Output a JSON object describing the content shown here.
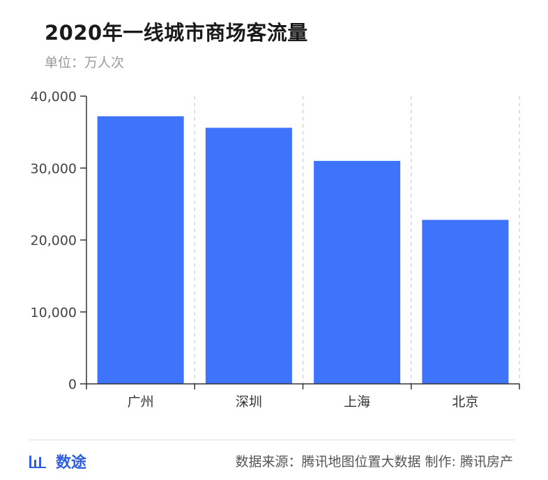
{
  "header": {
    "title": "2020年一线城市商场客流量",
    "unit": "单位：万人次"
  },
  "footer": {
    "brand": "数途",
    "source": "数据来源：腾讯地图位置大数据 制作: 腾讯房产"
  },
  "colors": {
    "bar": "#3d74fb",
    "axis": "#333333",
    "grid": "#cccccc"
  },
  "chart_data": {
    "type": "bar",
    "title": "2020年一线城市商场客流量",
    "subtitle": "单位：万人次",
    "categories": [
      "广州",
      "深圳",
      "上海",
      "北京"
    ],
    "values": [
      37200,
      35600,
      31000,
      22800
    ],
    "yticks": [
      "0",
      "10,000",
      "20,000",
      "30,000",
      "40,000"
    ],
    "ylim": [
      0,
      40000
    ],
    "xlabel": "",
    "ylabel": "",
    "grid": "vertical dashed"
  }
}
